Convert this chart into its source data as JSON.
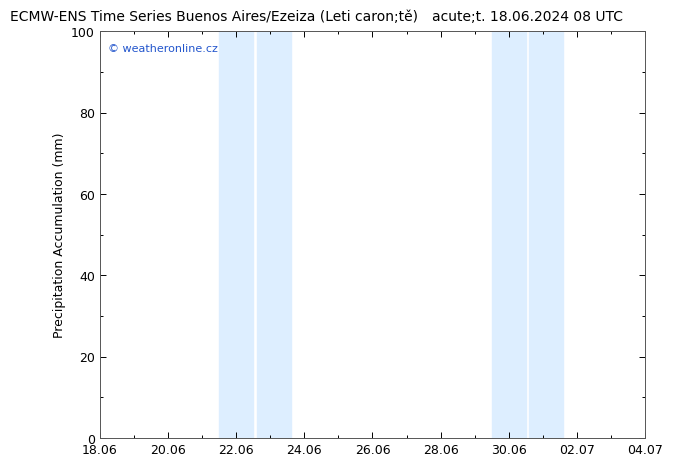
{
  "title_left": "ECMW-ENS Time Series Buenos Aires/Ezeiza (Leti caron;tě)",
  "title_right": "acute;t. 18.06.2024 08 UTC",
  "ylabel": "Precipitation Accumulation (mm)",
  "ylim": [
    0,
    100
  ],
  "yticks": [
    0,
    20,
    40,
    60,
    80,
    100
  ],
  "xtick_labels": [
    "18.06",
    "20.06",
    "22.06",
    "24.06",
    "26.06",
    "28.06",
    "30.06",
    "02.07",
    "04.07"
  ],
  "xtick_positions": [
    0,
    2,
    4,
    6,
    8,
    10,
    12,
    14,
    16
  ],
  "total_days": 16,
  "shaded_bands": [
    {
      "x_start": 3.5,
      "x_end": 4.5
    },
    {
      "x_start": 4.6,
      "x_end": 5.6
    },
    {
      "x_start": 11.5,
      "x_end": 12.5
    },
    {
      "x_start": 12.6,
      "x_end": 13.6
    }
  ],
  "shade_color": "#ddeeff",
  "plot_bg_color": "#ffffff",
  "fig_bg_color": "#ffffff",
  "watermark_text": "© weatheronline.cz",
  "watermark_color": "#2255cc",
  "title_fontsize": 10,
  "axis_label_fontsize": 9,
  "tick_label_fontsize": 9,
  "watermark_fontsize": 8
}
